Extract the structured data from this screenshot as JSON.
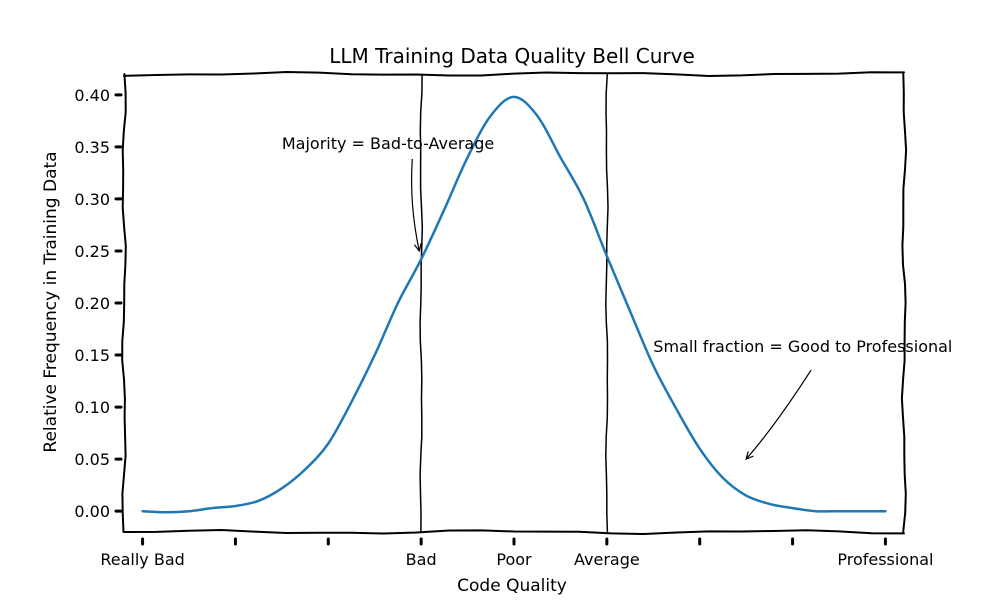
{
  "chart_data": {
    "type": "line",
    "title": "LLM Training Data Quality Bell Curve",
    "xlabel": "Code Quality",
    "ylabel": "Relative Frequency in Training Data",
    "xlim": [
      -0.2,
      8.2
    ],
    "ylim": [
      -0.02,
      0.42
    ],
    "yticks": [
      0.0,
      0.05,
      0.1,
      0.15,
      0.2,
      0.25,
      0.3,
      0.35,
      0.4
    ],
    "ytick_labels": [
      "0.00",
      "0.05",
      "0.10",
      "0.15",
      "0.20",
      "0.25",
      "0.30",
      "0.35",
      "0.40"
    ],
    "xticks": [
      0,
      1,
      2,
      3,
      4,
      5,
      6,
      7,
      8
    ],
    "xtick_labels": [
      "Really Bad",
      "",
      "",
      "Bad",
      "Poor",
      "Average",
      "",
      "",
      "Professional"
    ],
    "vlines": [
      3,
      5
    ],
    "series": [
      {
        "color": "#1f77b4",
        "x": [
          0.0,
          0.25,
          0.5,
          0.75,
          1.0,
          1.25,
          1.5,
          1.75,
          2.0,
          2.25,
          2.5,
          2.75,
          3.0,
          3.25,
          3.5,
          3.75,
          4.0,
          4.25,
          4.5,
          4.75,
          5.0,
          5.25,
          5.5,
          5.75,
          6.0,
          6.25,
          6.5,
          6.75,
          7.0,
          7.25,
          7.5,
          7.75,
          8.0
        ],
        "y": [
          0.0,
          -0.001,
          0.0,
          0.003,
          0.005,
          0.01,
          0.022,
          0.04,
          0.065,
          0.105,
          0.15,
          0.2,
          0.242,
          0.29,
          0.34,
          0.38,
          0.398,
          0.38,
          0.34,
          0.3,
          0.245,
          0.192,
          0.14,
          0.098,
          0.06,
          0.032,
          0.015,
          0.007,
          0.003,
          0.0,
          0.0,
          0.0,
          0.0
        ]
      }
    ],
    "annotations": [
      {
        "text": "Majority = Bad-to-Average",
        "x": 2.98,
        "y": 0.25,
        "text_x": 1.5,
        "text_y": 0.348
      },
      {
        "text": "Small fraction = Good to Professional",
        "x": 6.5,
        "y": 0.05,
        "text_x": 5.5,
        "text_y": 0.153
      }
    ]
  }
}
